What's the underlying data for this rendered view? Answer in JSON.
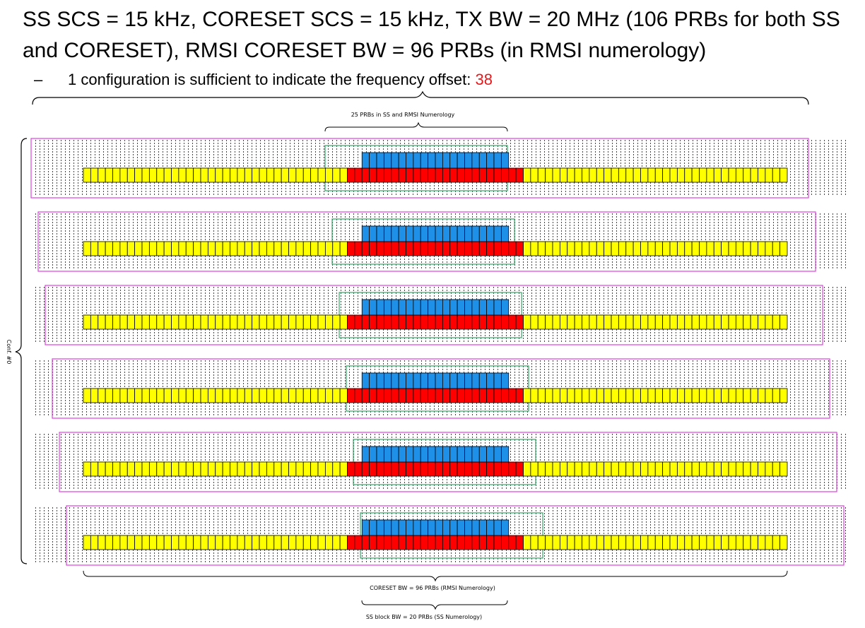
{
  "slide": {
    "title": "SS SCS = 15 kHz, CORESET SCS = 15 kHz, TX BW = 20 MHz (106 PRBs for both SS and CORESET), RMSI CORESET BW = 96 PRBs (in RMSI numerology)",
    "bullet_dash": "–",
    "bullet_text": "1 configuration is sufficient to indicate the frequency offset:",
    "bullet_value": "38"
  },
  "diagram": {
    "top_brace_label": "25 PRBs in SS and RMSI Numerology",
    "left_brace_label": "Conf. #0",
    "bottom_label_coreset": "CORESET BW = 96 PRBs (RMSI Numerology)",
    "bottom_label_ssblock": "SS block BW = 20 PRBs (SS Numerology)",
    "rows": 6,
    "coreset_prbs": 96,
    "ss_block_prbs": 20,
    "colors": {
      "coreset": "#ffff00",
      "overlap": "#ff0000",
      "ss_block": "#1e90e8",
      "tx_bandwidth_box": "#e040e0",
      "ss_raster_box": "#2fa866",
      "tick": "#444444"
    }
  }
}
